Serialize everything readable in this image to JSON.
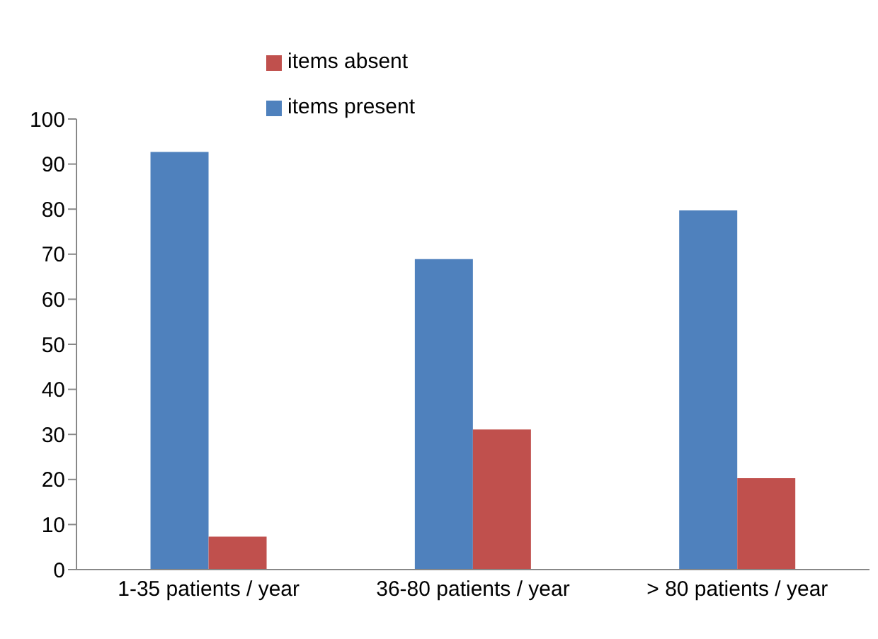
{
  "chart_data": {
    "type": "bar",
    "categories": [
      "1-35 patients / year",
      "36-80 patients / year",
      "> 80 patients / year"
    ],
    "series": [
      {
        "name": "items present",
        "color": "#4f81bd",
        "values": [
          92.7,
          68.9,
          79.7
        ]
      },
      {
        "name": "items absent",
        "color": "#c0504d",
        "values": [
          7.3,
          31.1,
          20.3
        ]
      }
    ],
    "ylim": [
      0,
      100
    ],
    "yticks": [
      0,
      10,
      20,
      30,
      40,
      50,
      60,
      70,
      80,
      90,
      100
    ],
    "grid": false,
    "legend": "top"
  }
}
